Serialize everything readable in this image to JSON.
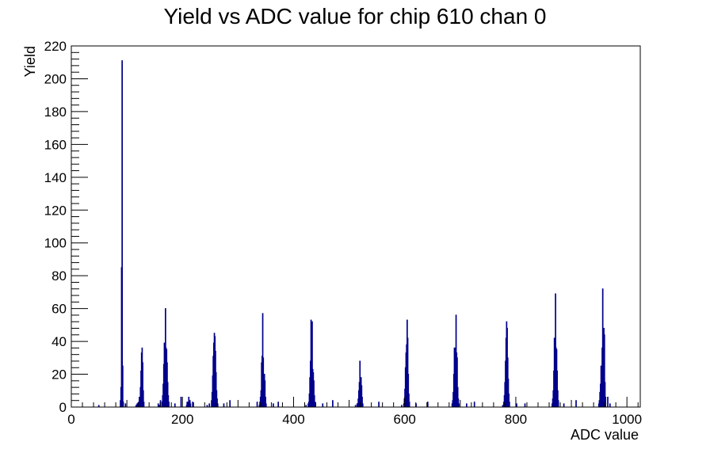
{
  "chart_data": {
    "type": "bar",
    "title": "Yield vs ADC value for chip 610 chan 0",
    "xlabel": "ADC value",
    "ylabel": "Yield",
    "xlim": [
      0,
      1024
    ],
    "ylim": [
      0,
      220
    ],
    "x_ticks": [
      0,
      200,
      400,
      600,
      800,
      1000
    ],
    "y_ticks": [
      0,
      20,
      40,
      60,
      80,
      100,
      120,
      140,
      160,
      180,
      200,
      220
    ],
    "grid": false,
    "line_color": "#00008b",
    "bins": [
      {
        "x": 49,
        "y": 1
      },
      {
        "x": 88,
        "y": 4
      },
      {
        "x": 89,
        "y": 12
      },
      {
        "x": 90,
        "y": 85
      },
      {
        "x": 91,
        "y": 211
      },
      {
        "x": 92,
        "y": 25
      },
      {
        "x": 93,
        "y": 3
      },
      {
        "x": 97,
        "y": 2
      },
      {
        "x": 116,
        "y": 1
      },
      {
        "x": 118,
        "y": 2
      },
      {
        "x": 121,
        "y": 3
      },
      {
        "x": 122,
        "y": 6
      },
      {
        "x": 123,
        "y": 5
      },
      {
        "x": 124,
        "y": 12
      },
      {
        "x": 125,
        "y": 22
      },
      {
        "x": 126,
        "y": 33
      },
      {
        "x": 127,
        "y": 36
      },
      {
        "x": 128,
        "y": 27
      },
      {
        "x": 129,
        "y": 10
      },
      {
        "x": 130,
        "y": 3
      },
      {
        "x": 156,
        "y": 2
      },
      {
        "x": 158,
        "y": 1
      },
      {
        "x": 160,
        "y": 4
      },
      {
        "x": 163,
        "y": 3
      },
      {
        "x": 164,
        "y": 7
      },
      {
        "x": 165,
        "y": 14
      },
      {
        "x": 166,
        "y": 26
      },
      {
        "x": 167,
        "y": 39
      },
      {
        "x": 168,
        "y": 34
      },
      {
        "x": 169,
        "y": 60
      },
      {
        "x": 170,
        "y": 36
      },
      {
        "x": 171,
        "y": 35
      },
      {
        "x": 172,
        "y": 27
      },
      {
        "x": 173,
        "y": 15
      },
      {
        "x": 174,
        "y": 7
      },
      {
        "x": 175,
        "y": 3
      },
      {
        "x": 186,
        "y": 2
      },
      {
        "x": 197,
        "y": 6
      },
      {
        "x": 207,
        "y": 1
      },
      {
        "x": 208,
        "y": 3
      },
      {
        "x": 209,
        "y": 2
      },
      {
        "x": 210,
        "y": 3
      },
      {
        "x": 211,
        "y": 6
      },
      {
        "x": 212,
        "y": 3
      },
      {
        "x": 213,
        "y": 4
      },
      {
        "x": 214,
        "y": 2
      },
      {
        "x": 218,
        "y": 3
      },
      {
        "x": 244,
        "y": 1
      },
      {
        "x": 248,
        "y": 2
      },
      {
        "x": 252,
        "y": 4
      },
      {
        "x": 253,
        "y": 9
      },
      {
        "x": 254,
        "y": 19
      },
      {
        "x": 255,
        "y": 31
      },
      {
        "x": 256,
        "y": 39
      },
      {
        "x": 257,
        "y": 45
      },
      {
        "x": 258,
        "y": 43
      },
      {
        "x": 259,
        "y": 34
      },
      {
        "x": 260,
        "y": 21
      },
      {
        "x": 261,
        "y": 10
      },
      {
        "x": 262,
        "y": 5
      },
      {
        "x": 263,
        "y": 2
      },
      {
        "x": 274,
        "y": 2
      },
      {
        "x": 285,
        "y": 4
      },
      {
        "x": 334,
        "y": 3
      },
      {
        "x": 338,
        "y": 1
      },
      {
        "x": 339,
        "y": 3
      },
      {
        "x": 340,
        "y": 6
      },
      {
        "x": 341,
        "y": 10
      },
      {
        "x": 342,
        "y": 27
      },
      {
        "x": 343,
        "y": 31
      },
      {
        "x": 344,
        "y": 57
      },
      {
        "x": 345,
        "y": 30
      },
      {
        "x": 346,
        "y": 18
      },
      {
        "x": 347,
        "y": 20
      },
      {
        "x": 348,
        "y": 16
      },
      {
        "x": 349,
        "y": 6
      },
      {
        "x": 350,
        "y": 2
      },
      {
        "x": 363,
        "y": 2
      },
      {
        "x": 372,
        "y": 3
      },
      {
        "x": 422,
        "y": 1
      },
      {
        "x": 426,
        "y": 2
      },
      {
        "x": 427,
        "y": 3
      },
      {
        "x": 428,
        "y": 8
      },
      {
        "x": 429,
        "y": 18
      },
      {
        "x": 430,
        "y": 28
      },
      {
        "x": 431,
        "y": 53
      },
      {
        "x": 432,
        "y": 29
      },
      {
        "x": 433,
        "y": 52
      },
      {
        "x": 434,
        "y": 23
      },
      {
        "x": 435,
        "y": 21
      },
      {
        "x": 436,
        "y": 16
      },
      {
        "x": 437,
        "y": 7
      },
      {
        "x": 438,
        "y": 3
      },
      {
        "x": 452,
        "y": 2
      },
      {
        "x": 470,
        "y": 4
      },
      {
        "x": 511,
        "y": 1
      },
      {
        "x": 514,
        "y": 2
      },
      {
        "x": 515,
        "y": 2
      },
      {
        "x": 516,
        "y": 5
      },
      {
        "x": 517,
        "y": 10
      },
      {
        "x": 518,
        "y": 15
      },
      {
        "x": 519,
        "y": 28
      },
      {
        "x": 520,
        "y": 14
      },
      {
        "x": 521,
        "y": 18
      },
      {
        "x": 522,
        "y": 13
      },
      {
        "x": 523,
        "y": 6
      },
      {
        "x": 524,
        "y": 2
      },
      {
        "x": 553,
        "y": 3
      },
      {
        "x": 594,
        "y": 1
      },
      {
        "x": 598,
        "y": 2
      },
      {
        "x": 599,
        "y": 5
      },
      {
        "x": 600,
        "y": 11
      },
      {
        "x": 601,
        "y": 24
      },
      {
        "x": 602,
        "y": 33
      },
      {
        "x": 603,
        "y": 38
      },
      {
        "x": 604,
        "y": 53
      },
      {
        "x": 605,
        "y": 42
      },
      {
        "x": 606,
        "y": 20
      },
      {
        "x": 607,
        "y": 8
      },
      {
        "x": 608,
        "y": 3
      },
      {
        "x": 620,
        "y": 2
      },
      {
        "x": 641,
        "y": 3
      },
      {
        "x": 685,
        "y": 2
      },
      {
        "x": 686,
        "y": 4
      },
      {
        "x": 687,
        "y": 9
      },
      {
        "x": 688,
        "y": 20
      },
      {
        "x": 689,
        "y": 36
      },
      {
        "x": 690,
        "y": 31
      },
      {
        "x": 691,
        "y": 36
      },
      {
        "x": 692,
        "y": 56
      },
      {
        "x": 693,
        "y": 33
      },
      {
        "x": 694,
        "y": 30
      },
      {
        "x": 695,
        "y": 12
      },
      {
        "x": 696,
        "y": 5
      },
      {
        "x": 697,
        "y": 2
      },
      {
        "x": 711,
        "y": 2
      },
      {
        "x": 725,
        "y": 3
      },
      {
        "x": 776,
        "y": 1
      },
      {
        "x": 778,
        "y": 3
      },
      {
        "x": 779,
        "y": 7
      },
      {
        "x": 780,
        "y": 15
      },
      {
        "x": 781,
        "y": 28
      },
      {
        "x": 782,
        "y": 42
      },
      {
        "x": 783,
        "y": 52
      },
      {
        "x": 784,
        "y": 48
      },
      {
        "x": 785,
        "y": 30
      },
      {
        "x": 786,
        "y": 17
      },
      {
        "x": 787,
        "y": 8
      },
      {
        "x": 788,
        "y": 3
      },
      {
        "x": 801,
        "y": 2
      },
      {
        "x": 816,
        "y": 2
      },
      {
        "x": 865,
        "y": 2
      },
      {
        "x": 866,
        "y": 5
      },
      {
        "x": 867,
        "y": 10
      },
      {
        "x": 868,
        "y": 22
      },
      {
        "x": 869,
        "y": 42
      },
      {
        "x": 870,
        "y": 31
      },
      {
        "x": 871,
        "y": 69
      },
      {
        "x": 872,
        "y": 36
      },
      {
        "x": 873,
        "y": 35
      },
      {
        "x": 874,
        "y": 22
      },
      {
        "x": 875,
        "y": 10
      },
      {
        "x": 876,
        "y": 4
      },
      {
        "x": 886,
        "y": 2
      },
      {
        "x": 908,
        "y": 4
      },
      {
        "x": 949,
        "y": 2
      },
      {
        "x": 950,
        "y": 4
      },
      {
        "x": 951,
        "y": 9
      },
      {
        "x": 952,
        "y": 14
      },
      {
        "x": 953,
        "y": 25
      },
      {
        "x": 954,
        "y": 15
      },
      {
        "x": 955,
        "y": 36
      },
      {
        "x": 956,
        "y": 72
      },
      {
        "x": 957,
        "y": 47
      },
      {
        "x": 958,
        "y": 48
      },
      {
        "x": 959,
        "y": 44
      },
      {
        "x": 960,
        "y": 15
      },
      {
        "x": 961,
        "y": 6
      },
      {
        "x": 965,
        "y": 6
      },
      {
        "x": 969,
        "y": 2
      }
    ]
  }
}
